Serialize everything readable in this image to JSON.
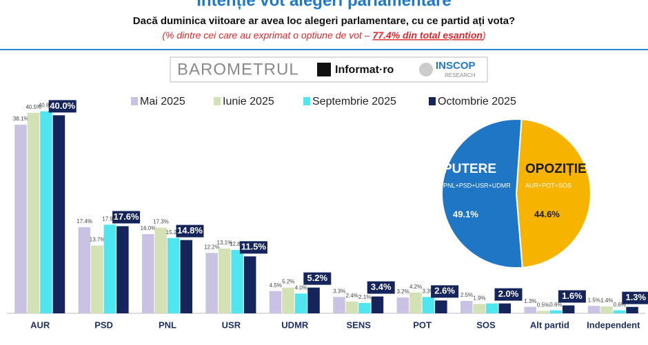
{
  "chart_data": [
    {
      "type": "bar",
      "title": "Intenție vot alegeri parlamentare",
      "subtitle": "Dacă duminica viitoare ar avea loc alegeri parlamentare, cu ce partid ați vota?",
      "note_parts": [
        "(% dintre cei care au exprimat o optiune de vot – ",
        "77.4% din total eșantion",
        ")"
      ],
      "logo": [
        "BAROMETRUL",
        "Informat·ro",
        "INSCOP",
        "RESEARCH"
      ],
      "categories": [
        "AUR",
        "PSD",
        "PNL",
        "USR",
        "UDMR",
        "SENS",
        "POT",
        "SOS",
        "Alt partid",
        "Independent"
      ],
      "series": [
        {
          "name": "Mai 2025",
          "color": "#c9c2e2",
          "values": [
            38.1,
            17.4,
            16.0,
            12.2,
            4.5,
            3.3,
            3.2,
            2.5,
            1.3,
            1.5
          ],
          "value_labels": [
            "38.1%",
            "17.4%",
            "16.0%",
            "12.2%",
            "4.5%",
            "3.3%",
            "3.2%",
            "2.5%",
            "1.3%",
            "1.5%"
          ]
        },
        {
          "name": "Iunie 2025",
          "color": "#d3e2b4",
          "values": [
            40.5,
            13.7,
            17.3,
            13.1,
            5.2,
            2.4,
            4.2,
            1.9,
            0.5,
            1.4
          ],
          "value_labels": [
            "40.5%",
            "13.7%",
            "17.3%",
            "13.1%",
            "5.2%",
            "2.4%",
            "4.2%",
            "1.9%",
            "0.5%",
            "1.4%"
          ]
        },
        {
          "name": "Septembrie 2025",
          "color": "#4fe6ef",
          "values": [
            40.8,
            17.9,
            15.2,
            12.8,
            4.0,
            2.1,
            3.3,
            2.0,
            0.6,
            0.6
          ],
          "value_labels": [
            "40.8%",
            "17.9%",
            "15.2%",
            "12.8%",
            "4.0%",
            "2.1%",
            "3.3%",
            null,
            "0.6%",
            "0.6%"
          ]
        },
        {
          "name": "Octombrie 2025",
          "color": "#16245c",
          "values": [
            40.0,
            17.6,
            14.8,
            11.5,
            5.2,
            3.4,
            2.6,
            2.0,
            1.6,
            1.3
          ],
          "value_labels": [
            "40.0%",
            "17.6%",
            "14.8%",
            "11.5%",
            "5.2%",
            "3.4%",
            "2.6%",
            "2.0%",
            "1.6%",
            "1.3%"
          ]
        }
      ],
      "ylim": [
        0,
        42
      ]
    },
    {
      "type": "pie",
      "categories": [
        "PUTERE",
        "OPOZIȚIE"
      ],
      "sublabels": [
        "PNL+PSD+USR+UDMR",
        "AUR+POT+SOS"
      ],
      "values": [
        49.1,
        44.6
      ],
      "value_labels": [
        "49.1%",
        "44.6%"
      ],
      "colors": [
        "#1f76c4",
        "#f6b400"
      ]
    }
  ]
}
